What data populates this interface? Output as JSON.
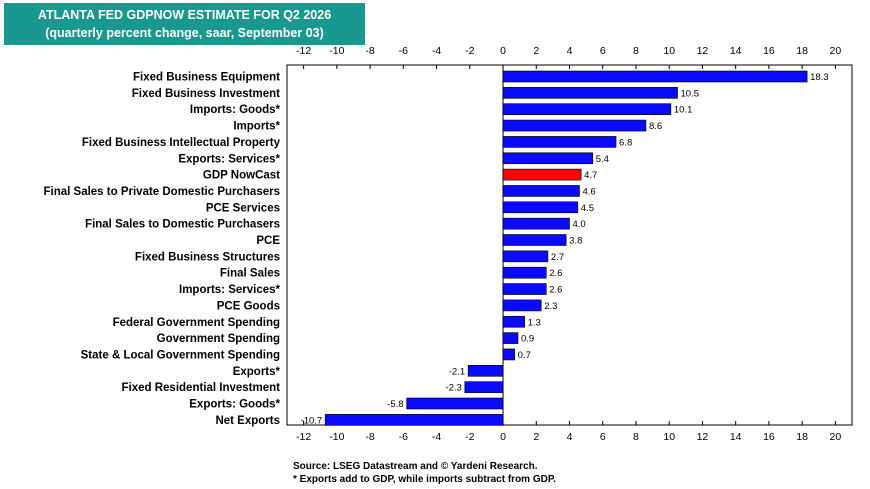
{
  "header": {
    "title": "ATLANTA FED GDPNOW ESTIMATE FOR Q2 2026",
    "subtitle": "(quarterly percent change, saar, September 03)"
  },
  "footer": {
    "source": "Source: LSEG Datastream and © Yardeni Research.",
    "note": "* Exports add to GDP, while imports subtract from GDP."
  },
  "chart_data": {
    "type": "bar",
    "orientation": "horizontal",
    "title": "ATLANTA FED GDPNOW ESTIMATE FOR Q2 2026",
    "subtitle": "(quarterly percent change, saar, September 03)",
    "xlim": [
      -13,
      21
    ],
    "xticks": [
      -12,
      -10,
      -8,
      -6,
      -4,
      -2,
      0,
      2,
      4,
      6,
      8,
      10,
      12,
      14,
      16,
      18,
      20
    ],
    "tick_positions": "top-and-bottom",
    "grid": false,
    "colors": {
      "default": "#0a0aff",
      "highlight": "#ff0000",
      "outline": "#000000"
    },
    "highlight_category": "GDP NowCast",
    "categories": [
      "Fixed Business Equipment",
      "Fixed Business Investment",
      "Imports: Goods*",
      "Imports*",
      "Fixed Business Intellectual Property",
      "Exports: Services*",
      "GDP NowCast",
      "Final Sales to Private Domestic Purchasers",
      "PCE Services",
      "Final Sales to Domestic Purchasers",
      "PCE",
      "Fixed Business Structures",
      "Final Sales",
      "Imports: Services*",
      "PCE Goods",
      "Federal Government Spending",
      "Government Spending",
      "State & Local Government Spending",
      "Exports*",
      "Fixed Residential Investment",
      "Exports: Goods*",
      "Net Exports"
    ],
    "values": [
      18.3,
      10.5,
      10.1,
      8.6,
      6.8,
      5.4,
      4.7,
      4.6,
      4.5,
      4.0,
      3.8,
      2.7,
      2.6,
      2.6,
      2.3,
      1.3,
      0.9,
      0.7,
      -2.1,
      -2.3,
      -5.8,
      -10.7
    ],
    "value_labels": [
      "18.3",
      "10.5",
      "10.1",
      "8.6",
      "6.8",
      "5.4",
      "4.7",
      "4.6",
      "4.5",
      "4.0",
      "3.8",
      "2.7",
      "2.6",
      "2.6",
      "2.3",
      "1.3",
      "0.9",
      "0.7",
      "-2.1",
      "-2.3",
      "-5.8",
      "-10.7"
    ]
  }
}
